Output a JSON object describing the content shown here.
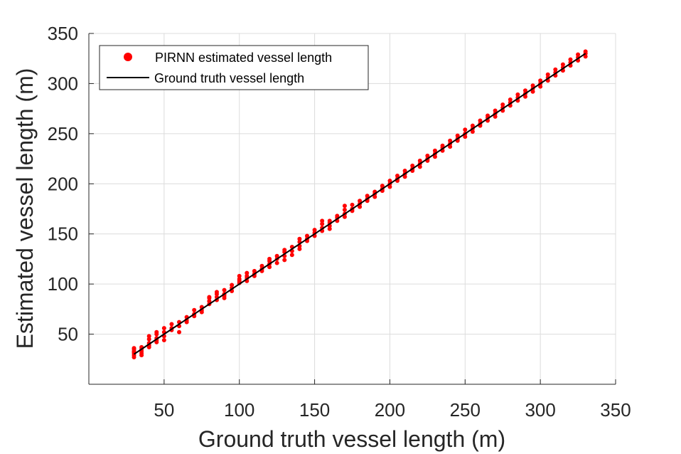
{
  "chart_data": {
    "type": "scatter",
    "xlabel": "Ground truth vessel length (m)",
    "ylabel": "Estimated vessel length (m)",
    "xlim": [
      0,
      350
    ],
    "ylim": [
      0,
      350
    ],
    "x_ticks": [
      50,
      100,
      150,
      200,
      250,
      300,
      350
    ],
    "y_ticks": [
      50,
      100,
      150,
      200,
      250,
      300,
      350
    ],
    "grid": true,
    "legend_position": "top-left",
    "colors": {
      "estimated": "#ff0000",
      "ground_truth": "#000000"
    },
    "series": [
      {
        "name": "PIRNN estimated vessel length",
        "kind": "scatter",
        "x": [
          30,
          30,
          30,
          30,
          30,
          30,
          30,
          35,
          35,
          35,
          35,
          35,
          40,
          40,
          40,
          40,
          40,
          45,
          45,
          45,
          45,
          45,
          50,
          50,
          50,
          50,
          55,
          55,
          55,
          60,
          60,
          60,
          65,
          65,
          65,
          70,
          70,
          70,
          75,
          75,
          75,
          80,
          80,
          80,
          80,
          85,
          85,
          85,
          85,
          90,
          90,
          90,
          90,
          95,
          95,
          95,
          100,
          100,
          100,
          100,
          105,
          105,
          105,
          105,
          110,
          110,
          110,
          115,
          115,
          115,
          120,
          120,
          120,
          120,
          125,
          125,
          125,
          130,
          130,
          130,
          130,
          135,
          135,
          135,
          140,
          140,
          140,
          140,
          145,
          145,
          145,
          150,
          150,
          150,
          155,
          155,
          155,
          155,
          160,
          160,
          160,
          160,
          165,
          165,
          165,
          170,
          170,
          170,
          170,
          175,
          175,
          175,
          180,
          180,
          180,
          185,
          185,
          185,
          190,
          190,
          190,
          195,
          195,
          195,
          200,
          200,
          200,
          205,
          205,
          205,
          210,
          210,
          210,
          215,
          215,
          215,
          220,
          220,
          220,
          225,
          225,
          225,
          230,
          230,
          230,
          235,
          235,
          235,
          240,
          240,
          240,
          245,
          245,
          245,
          250,
          250,
          250,
          255,
          255,
          255,
          260,
          260,
          260,
          265,
          265,
          265,
          270,
          270,
          270,
          275,
          275,
          275,
          280,
          280,
          280,
          285,
          285,
          285,
          290,
          290,
          290,
          295,
          295,
          295,
          300,
          300,
          300,
          305,
          305,
          305,
          310,
          310,
          310,
          315,
          315,
          315,
          320,
          320,
          320,
          325,
          325,
          325,
          330,
          330,
          330
        ],
        "y": [
          27,
          29,
          31,
          33,
          35,
          36,
          32,
          29,
          31,
          33,
          35,
          37,
          37,
          39,
          41,
          45,
          48,
          42,
          44,
          46,
          50,
          52,
          44,
          48,
          52,
          56,
          54,
          56,
          60,
          52,
          58,
          62,
          62,
          64,
          67,
          68,
          70,
          74,
          72,
          74,
          77,
          80,
          83,
          86,
          87,
          84,
          87,
          90,
          92,
          86,
          88,
          90,
          94,
          93,
          96,
          99,
          101,
          103,
          105,
          108,
          103,
          106,
          108,
          111,
          108,
          110,
          113,
          113,
          115,
          118,
          117,
          120,
          123,
          125,
          121,
          125,
          128,
          124,
          128,
          132,
          134,
          129,
          133,
          137,
          135,
          138,
          142,
          145,
          143,
          145,
          148,
          148,
          151,
          154,
          153,
          156,
          160,
          163,
          155,
          158,
          161,
          163,
          163,
          166,
          168,
          167,
          170,
          174,
          178,
          173,
          175,
          179,
          177,
          180,
          183,
          183,
          185,
          188,
          187,
          190,
          192,
          193,
          195,
          198,
          197,
          200,
          203,
          203,
          205,
          208,
          207,
          210,
          213,
          213,
          215,
          218,
          217,
          220,
          223,
          223,
          225,
          228,
          227,
          230,
          233,
          233,
          236,
          238,
          237,
          240,
          243,
          243,
          245,
          248,
          247,
          250,
          254,
          252,
          255,
          258,
          258,
          260,
          263,
          263,
          266,
          268,
          267,
          270,
          273,
          273,
          276,
          279,
          278,
          281,
          284,
          283,
          286,
          289,
          287,
          290,
          293,
          292,
          295,
          298,
          297,
          300,
          303,
          303,
          306,
          309,
          308,
          311,
          314,
          313,
          316,
          319,
          318,
          321,
          324,
          323,
          326,
          329,
          327,
          330,
          332
        ]
      },
      {
        "name": "Ground truth vessel length",
        "kind": "line",
        "x": [
          30,
          330
        ],
        "y": [
          30,
          330
        ]
      }
    ]
  }
}
